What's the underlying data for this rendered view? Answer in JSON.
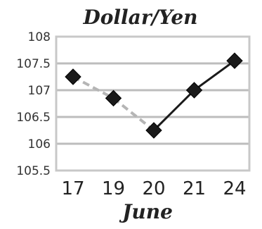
{
  "chart_data": {
    "type": "line",
    "title": "Dollar/Yen",
    "xlabel": "June",
    "ylabel": "",
    "categories": [
      "17",
      "19",
      "20",
      "21",
      "24"
    ],
    "series": [
      {
        "values": [
          107.25,
          106.85,
          106.25,
          107.0,
          107.55
        ]
      }
    ],
    "ylim": [
      105.5,
      108
    ],
    "yticks": [
      "105.5",
      "106",
      "106.5",
      "107",
      "107.5",
      "108"
    ],
    "grid": true,
    "legend": "none",
    "line_styles": [
      "dashed",
      "dashed",
      "solid",
      "solid"
    ]
  }
}
